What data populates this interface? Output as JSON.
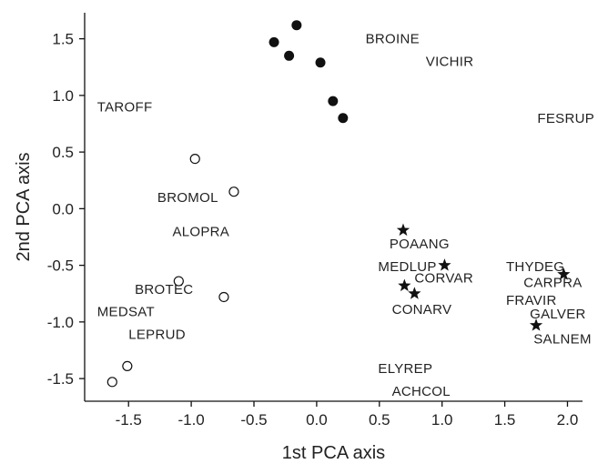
{
  "chart_data": {
    "type": "scatter",
    "xlabel": "1st PCA axis",
    "ylabel": "2nd PCA axis",
    "xlim": [
      -1.85,
      2.12
    ],
    "ylim": [
      -1.7,
      1.73
    ],
    "xticks": [
      -1.5,
      -1.0,
      -0.5,
      0.0,
      0.5,
      1.0,
      1.5,
      2.0
    ],
    "yticks": [
      -1.5,
      -1.0,
      -0.5,
      0.0,
      0.5,
      1.0,
      1.5
    ],
    "xtick_labels": [
      "-1.5",
      "-1.0",
      "-0.5",
      "0.0",
      "0.5",
      "1.0",
      "1.5",
      "2.0"
    ],
    "ytick_labels": [
      "-1.5",
      "-1.0",
      "-0.5",
      "0.0",
      "0.5",
      "1.0",
      "1.5"
    ],
    "grid": false,
    "series": [
      {
        "marker": "filled-circle",
        "color": "#111111",
        "points": [
          {
            "x": -0.16,
            "y": 1.62
          },
          {
            "x": -0.34,
            "y": 1.47
          },
          {
            "x": -0.22,
            "y": 1.35
          },
          {
            "x": 0.03,
            "y": 1.29
          },
          {
            "x": 0.13,
            "y": 0.95
          },
          {
            "x": 0.21,
            "y": 0.8
          }
        ]
      },
      {
        "marker": "open-circle",
        "color": "#111111",
        "points": [
          {
            "x": -0.97,
            "y": 0.44
          },
          {
            "x": -0.66,
            "y": 0.15
          },
          {
            "x": -1.1,
            "y": -0.64
          },
          {
            "x": -0.74,
            "y": -0.78
          },
          {
            "x": -1.51,
            "y": -1.39
          },
          {
            "x": -1.63,
            "y": -1.53
          }
        ]
      },
      {
        "marker": "star",
        "color": "#111111",
        "points": [
          {
            "x": 0.69,
            "y": -0.19
          },
          {
            "x": 1.02,
            "y": -0.5
          },
          {
            "x": 0.7,
            "y": -0.68
          },
          {
            "x": 0.78,
            "y": -0.75
          },
          {
            "x": 1.97,
            "y": -0.58
          },
          {
            "x": 1.75,
            "y": -1.03
          }
        ]
      }
    ],
    "labels": [
      {
        "text": "BROINE",
        "x": 0.39,
        "y": 1.5
      },
      {
        "text": "VICHIR",
        "x": 0.87,
        "y": 1.3
      },
      {
        "text": "TAROFF",
        "x": -1.75,
        "y": 0.9
      },
      {
        "text": "FESRUP",
        "x": 1.76,
        "y": 0.8
      },
      {
        "text": "BROMOL",
        "x": -1.27,
        "y": 0.1
      },
      {
        "text": "ALOPRA",
        "x": -1.15,
        "y": -0.2
      },
      {
        "text": "POAANG",
        "x": 0.58,
        "y": -0.31
      },
      {
        "text": "MEDLUP",
        "x": 0.49,
        "y": -0.51
      },
      {
        "text": "THYDEG",
        "x": 1.51,
        "y": -0.51
      },
      {
        "text": "CORVAR",
        "x": 0.78,
        "y": -0.61
      },
      {
        "text": "CARPRA",
        "x": 1.65,
        "y": -0.65
      },
      {
        "text": "BROTEC",
        "x": -1.45,
        "y": -0.71
      },
      {
        "text": "FRAVIR",
        "x": 1.51,
        "y": -0.81
      },
      {
        "text": "CONARV",
        "x": 0.6,
        "y": -0.89
      },
      {
        "text": "MEDSAT",
        "x": -1.75,
        "y": -0.91
      },
      {
        "text": "GALVER",
        "x": 1.7,
        "y": -0.93
      },
      {
        "text": "SALNEM",
        "x": 1.73,
        "y": -1.15
      },
      {
        "text": "LEPRUD",
        "x": -1.5,
        "y": -1.11
      },
      {
        "text": "ELYREP",
        "x": 0.49,
        "y": -1.41
      },
      {
        "text": "ACHCOL",
        "x": 0.6,
        "y": -1.61
      }
    ]
  }
}
